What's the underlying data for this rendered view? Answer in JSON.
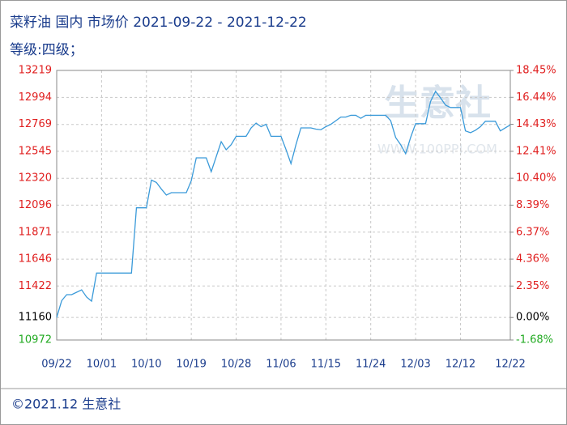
{
  "chart_data": {
    "type": "line",
    "title": "菜籽油 国内 市场价 2021-09-22 - 2021-12-22",
    "subtitle": "等级:四级；",
    "watermark": "生意社",
    "watermark_url": "WWW.100PPI.COM",
    "footer": "©2021.12 生意社",
    "categories": [
      "09/22",
      null,
      null,
      null,
      null,
      null,
      null,
      null,
      null,
      "10/01",
      null,
      null,
      null,
      null,
      null,
      null,
      null,
      null,
      "10/10",
      null,
      null,
      null,
      null,
      null,
      null,
      null,
      null,
      "10/19",
      null,
      null,
      null,
      null,
      null,
      null,
      null,
      null,
      "10/28",
      null,
      null,
      null,
      null,
      null,
      null,
      null,
      null,
      "11/06",
      null,
      null,
      null,
      null,
      null,
      null,
      null,
      null,
      "11/15",
      null,
      null,
      null,
      null,
      null,
      null,
      null,
      null,
      "11/24",
      null,
      null,
      null,
      null,
      null,
      null,
      null,
      null,
      "12/03",
      null,
      null,
      null,
      null,
      null,
      null,
      null,
      null,
      "12/12",
      null,
      null,
      null,
      null,
      null,
      null,
      null,
      null,
      null,
      "12/22"
    ],
    "series": [
      {
        "color": "#3a9ad9",
        "values": [
          11160,
          11300,
          11350,
          11350,
          11370,
          11390,
          11330,
          11296,
          11530,
          11530,
          11530,
          11530,
          11530,
          11530,
          11530,
          11530,
          12074,
          12074,
          12074,
          12305,
          12285,
          12230,
          12180,
          12200,
          12200,
          12200,
          12200,
          12300,
          12490,
          12490,
          12490,
          12375,
          12500,
          12625,
          12558,
          12600,
          12670,
          12670,
          12670,
          12740,
          12780,
          12750,
          12770,
          12670,
          12670,
          12670,
          12560,
          12442,
          12600,
          12740,
          12740,
          12740,
          12730,
          12725,
          12750,
          12770,
          12800,
          12830,
          12830,
          12845,
          12845,
          12820,
          12845,
          12845,
          12845,
          12845,
          12845,
          12800,
          12660,
          12600,
          12525,
          12660,
          12775,
          12775,
          12775,
          12960,
          13045,
          12990,
          12930,
          12910,
          12910,
          12910,
          12715,
          12700,
          12720,
          12750,
          12795,
          12795,
          12795,
          12715,
          12740,
          12765
        ]
      }
    ],
    "ylim": [
      10972,
      13219
    ],
    "yticks": [
      13219,
      12994,
      12769,
      12545,
      12320,
      12096,
      11871,
      11646,
      11422,
      11160,
      10972
    ],
    "y2lim": [
      -1.68,
      18.45
    ],
    "y2ticks": [
      {
        "value": 18.45,
        "label": "18.45%"
      },
      {
        "value": 16.44,
        "label": "16.44%"
      },
      {
        "value": 14.43,
        "label": "14.43%"
      },
      {
        "value": 12.41,
        "label": "12.41%"
      },
      {
        "value": 10.4,
        "label": "10.40%"
      },
      {
        "value": 8.39,
        "label": "8.39%"
      },
      {
        "value": 6.37,
        "label": "6.37%"
      },
      {
        "value": 4.36,
        "label": "4.36%"
      },
      {
        "value": 2.35,
        "label": "2.35%"
      },
      {
        "value": 0,
        "label": "0.00%"
      },
      {
        "value": -1.68,
        "label": "-1.68%"
      }
    ],
    "grid": true
  }
}
